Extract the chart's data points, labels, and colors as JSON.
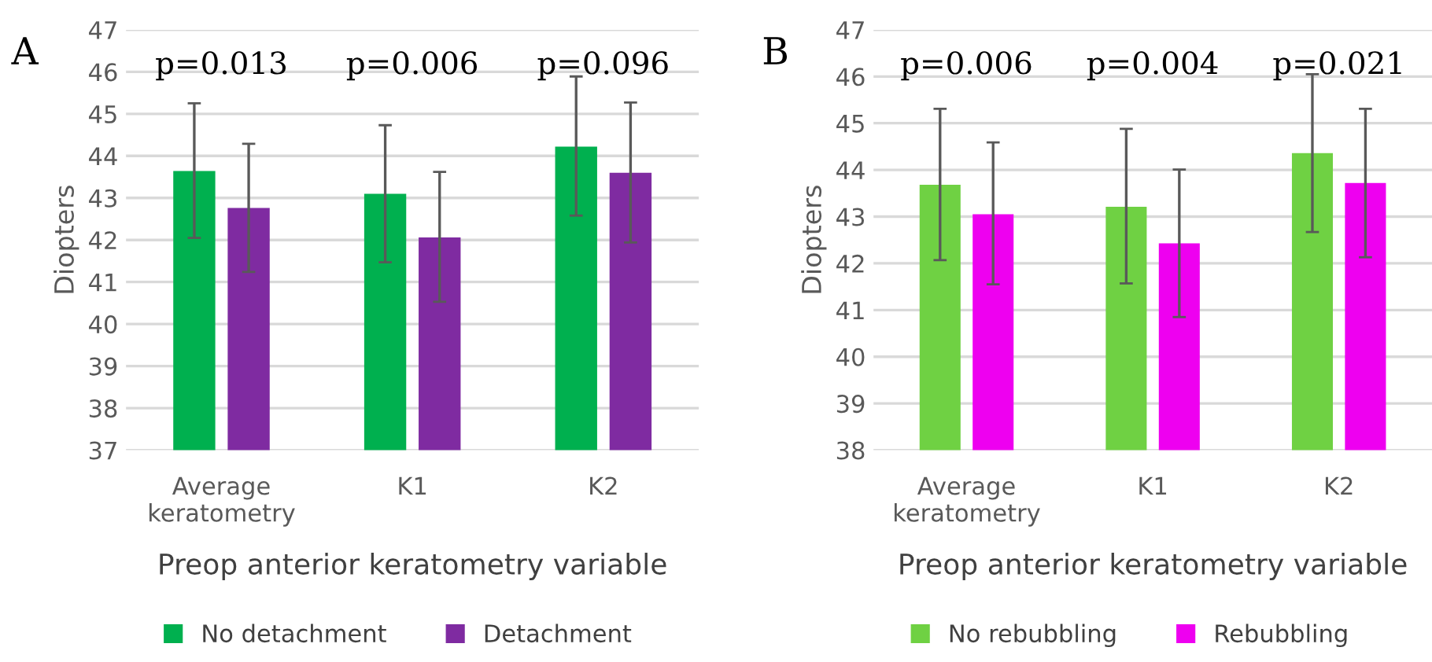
{
  "chart_data": [
    {
      "type": "bar",
      "title": "A",
      "xlabel": "Preop anterior keratometry variable",
      "ylabel": "Diopters",
      "categories": [
        "Average keratometry",
        "K1",
        "K2"
      ],
      "series": [
        {
          "name": "No detachment",
          "color": "#00b04f",
          "values": [
            43.64,
            43.1,
            44.22
          ],
          "errors": [
            [
              42.05,
              45.25
            ],
            [
              41.47,
              44.73
            ],
            [
              42.58,
              45.89
            ]
          ]
        },
        {
          "name": "Detachment",
          "color": "#7f2ba1",
          "values": [
            42.76,
            42.06,
            43.6
          ],
          "errors": [
            [
              41.24,
              44.29
            ],
            [
              40.53,
              43.62
            ],
            [
              41.94,
              45.27
            ]
          ]
        }
      ],
      "ylim": [
        37,
        47
      ],
      "yticks": [
        37,
        38,
        39,
        40,
        41,
        42,
        43,
        44,
        45,
        46,
        47
      ],
      "grid": "y",
      "legend": "bottom",
      "annotations": [
        "p=0.013",
        "p=0.006",
        "p=0.096"
      ]
    },
    {
      "type": "bar",
      "title": "B",
      "xlabel": "Preop anterior keratometry variable",
      "ylabel": "Diopters",
      "categories": [
        "Average keratometry",
        "K1",
        "K2"
      ],
      "series": [
        {
          "name": "No rebubbling",
          "color": "#6fd143",
          "values": [
            43.68,
            43.21,
            44.36
          ],
          "errors": [
            [
              42.07,
              45.31
            ],
            [
              41.57,
              44.88
            ],
            [
              42.67,
              46.05
            ]
          ]
        },
        {
          "name": "Rebubbling",
          "color": "#ee00f0",
          "values": [
            43.05,
            42.43,
            43.72
          ],
          "errors": [
            [
              41.55,
              44.59
            ],
            [
              40.85,
              44.01
            ],
            [
              42.13,
              45.31
            ]
          ]
        }
      ],
      "ylim": [
        38,
        47
      ],
      "yticks": [
        38,
        39,
        40,
        41,
        42,
        43,
        44,
        45,
        46,
        47
      ],
      "grid": "y",
      "legend": "bottom",
      "annotations": [
        "p=0.006",
        "p=0.004",
        "p=0.021"
      ]
    }
  ]
}
